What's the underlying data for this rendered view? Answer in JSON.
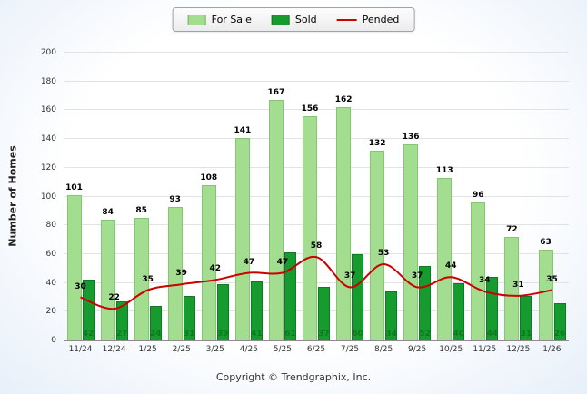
{
  "legend": {
    "for_sale_label": "For Sale",
    "sold_label": "Sold",
    "pended_label": "Pended"
  },
  "footer": {
    "copyright": "Copyright © Trendgraphix, Inc."
  },
  "chart_data": {
    "type": "bar",
    "title": "",
    "ylabel": "Number of Homes",
    "xlabel": "",
    "ylim": [
      0,
      200
    ],
    "ytick_step": 20,
    "grid": true,
    "legend_position": "top-center",
    "categories": [
      "11/24",
      "12/24",
      "1/25",
      "2/25",
      "3/25",
      "4/25",
      "5/25",
      "6/25",
      "7/25",
      "8/25",
      "9/25",
      "10/25",
      "11/25",
      "12/25",
      "1/26"
    ],
    "series": [
      {
        "name": "For Sale",
        "type": "bar",
        "color": "#A3DD90",
        "border_color": "#85C672",
        "values": [
          101,
          84,
          85,
          93,
          108,
          141,
          167,
          156,
          162,
          132,
          136,
          113,
          96,
          72,
          63
        ]
      },
      {
        "name": "Sold",
        "type": "bar",
        "color": "#169B2E",
        "border_color": "#0E7A22",
        "values": [
          42,
          27,
          24,
          31,
          39,
          41,
          61,
          37,
          60,
          34,
          52,
          40,
          44,
          31,
          26
        ]
      },
      {
        "name": "Pended",
        "type": "line",
        "color": "#CC0000",
        "values": [
          30,
          22,
          35,
          39,
          42,
          47,
          47,
          58,
          37,
          53,
          37,
          44,
          34,
          31,
          35
        ]
      }
    ]
  }
}
